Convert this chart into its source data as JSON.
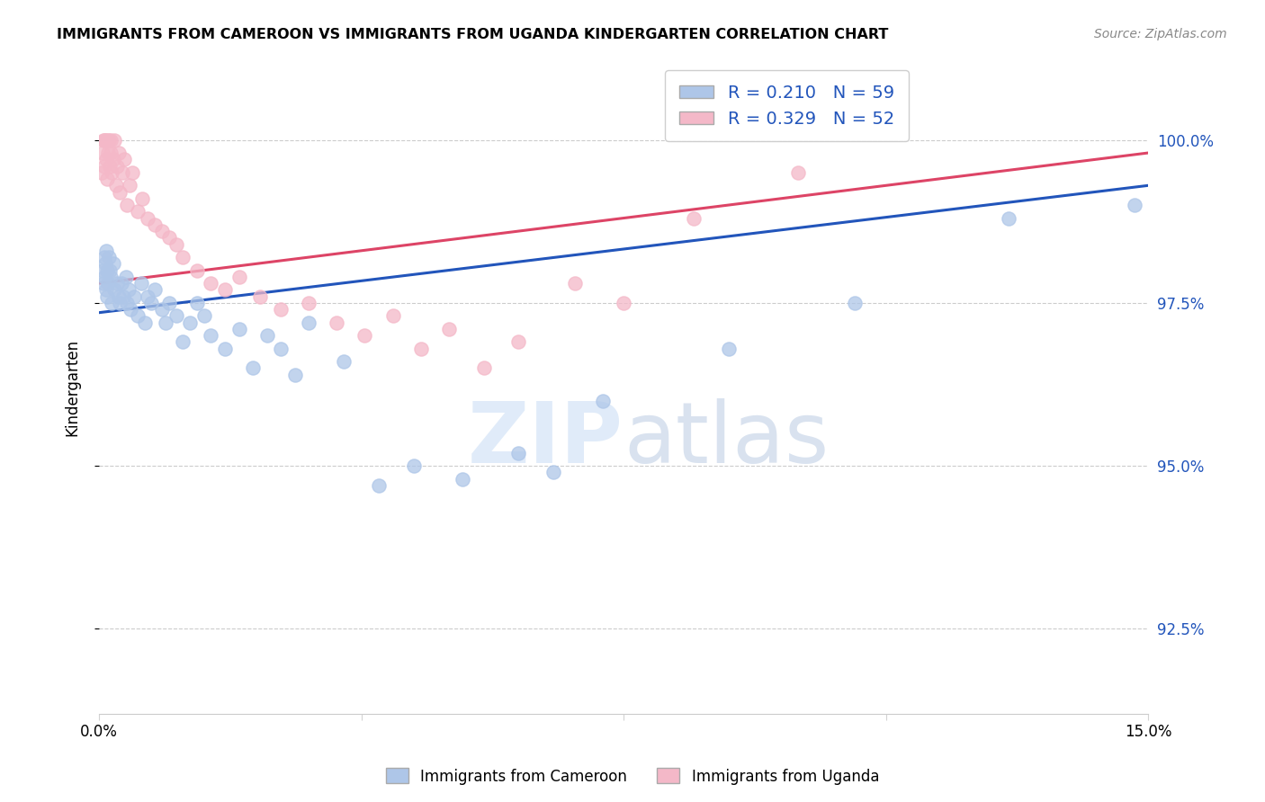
{
  "title": "IMMIGRANTS FROM CAMEROON VS IMMIGRANTS FROM UGANDA KINDERGARTEN CORRELATION CHART",
  "source": "Source: ZipAtlas.com",
  "ylabel": "Kindergarten",
  "ytick_labels": [
    "92.5%",
    "95.0%",
    "97.5%",
    "100.0%"
  ],
  "ytick_values": [
    92.5,
    95.0,
    97.5,
    100.0
  ],
  "xlim": [
    0.0,
    15.0
  ],
  "ylim": [
    91.2,
    101.2
  ],
  "r_cameroon": 0.21,
  "n_cameroon": 59,
  "r_uganda": 0.329,
  "n_uganda": 52,
  "color_cameroon": "#aec6e8",
  "color_uganda": "#f4b8c8",
  "line_color_cameroon": "#2255bb",
  "line_color_uganda": "#dd4466",
  "watermark_zip": "ZIP",
  "watermark_atlas": "atlas",
  "cameroon_x": [
    0.05,
    0.06,
    0.07,
    0.08,
    0.09,
    0.1,
    0.1,
    0.11,
    0.12,
    0.13,
    0.14,
    0.15,
    0.16,
    0.18,
    0.2,
    0.22,
    0.25,
    0.28,
    0.3,
    0.32,
    0.35,
    0.38,
    0.4,
    0.42,
    0.45,
    0.5,
    0.55,
    0.6,
    0.65,
    0.7,
    0.75,
    0.8,
    0.9,
    0.95,
    1.0,
    1.1,
    1.2,
    1.3,
    1.4,
    1.5,
    1.6,
    1.8,
    2.0,
    2.2,
    2.4,
    2.6,
    2.8,
    3.0,
    3.5,
    4.0,
    4.5,
    5.2,
    6.0,
    6.5,
    7.2,
    9.0,
    10.8,
    13.0,
    14.8
  ],
  "cameroon_y": [
    98.0,
    97.8,
    98.2,
    97.9,
    98.1,
    97.7,
    98.3,
    97.6,
    98.0,
    97.8,
    98.2,
    98.0,
    97.9,
    97.5,
    98.1,
    97.7,
    97.8,
    97.6,
    97.5,
    97.8,
    97.6,
    97.9,
    97.5,
    97.7,
    97.4,
    97.6,
    97.3,
    97.8,
    97.2,
    97.6,
    97.5,
    97.7,
    97.4,
    97.2,
    97.5,
    97.3,
    96.9,
    97.2,
    97.5,
    97.3,
    97.0,
    96.8,
    97.1,
    96.5,
    97.0,
    96.8,
    96.4,
    97.2,
    96.6,
    94.7,
    95.0,
    94.8,
    95.2,
    94.9,
    96.0,
    96.8,
    97.5,
    98.8,
    99.0
  ],
  "uganda_x": [
    0.04,
    0.05,
    0.06,
    0.07,
    0.08,
    0.09,
    0.1,
    0.11,
    0.12,
    0.13,
    0.14,
    0.15,
    0.16,
    0.17,
    0.18,
    0.2,
    0.22,
    0.24,
    0.26,
    0.28,
    0.3,
    0.33,
    0.36,
    0.4,
    0.44,
    0.48,
    0.55,
    0.62,
    0.7,
    0.8,
    0.9,
    1.0,
    1.1,
    1.2,
    1.4,
    1.6,
    1.8,
    2.0,
    2.3,
    2.6,
    3.0,
    3.4,
    3.8,
    4.2,
    4.6,
    5.0,
    5.5,
    6.0,
    6.8,
    7.5,
    8.5,
    10.0
  ],
  "uganda_y": [
    99.5,
    99.8,
    100.0,
    100.0,
    99.6,
    100.0,
    99.7,
    100.0,
    99.4,
    99.8,
    100.0,
    99.6,
    99.8,
    100.0,
    99.5,
    99.7,
    100.0,
    99.3,
    99.6,
    99.8,
    99.2,
    99.5,
    99.7,
    99.0,
    99.3,
    99.5,
    98.9,
    99.1,
    98.8,
    98.7,
    98.6,
    98.5,
    98.4,
    98.2,
    98.0,
    97.8,
    97.7,
    97.9,
    97.6,
    97.4,
    97.5,
    97.2,
    97.0,
    97.3,
    96.8,
    97.1,
    96.5,
    96.9,
    97.8,
    97.5,
    98.8,
    99.5
  ],
  "cam_line_x0": 0.0,
  "cam_line_y0": 97.35,
  "cam_line_x1": 15.0,
  "cam_line_y1": 99.3,
  "uga_line_x0": 0.0,
  "uga_line_y0": 97.8,
  "uga_line_x1": 15.0,
  "uga_line_y1": 99.8
}
